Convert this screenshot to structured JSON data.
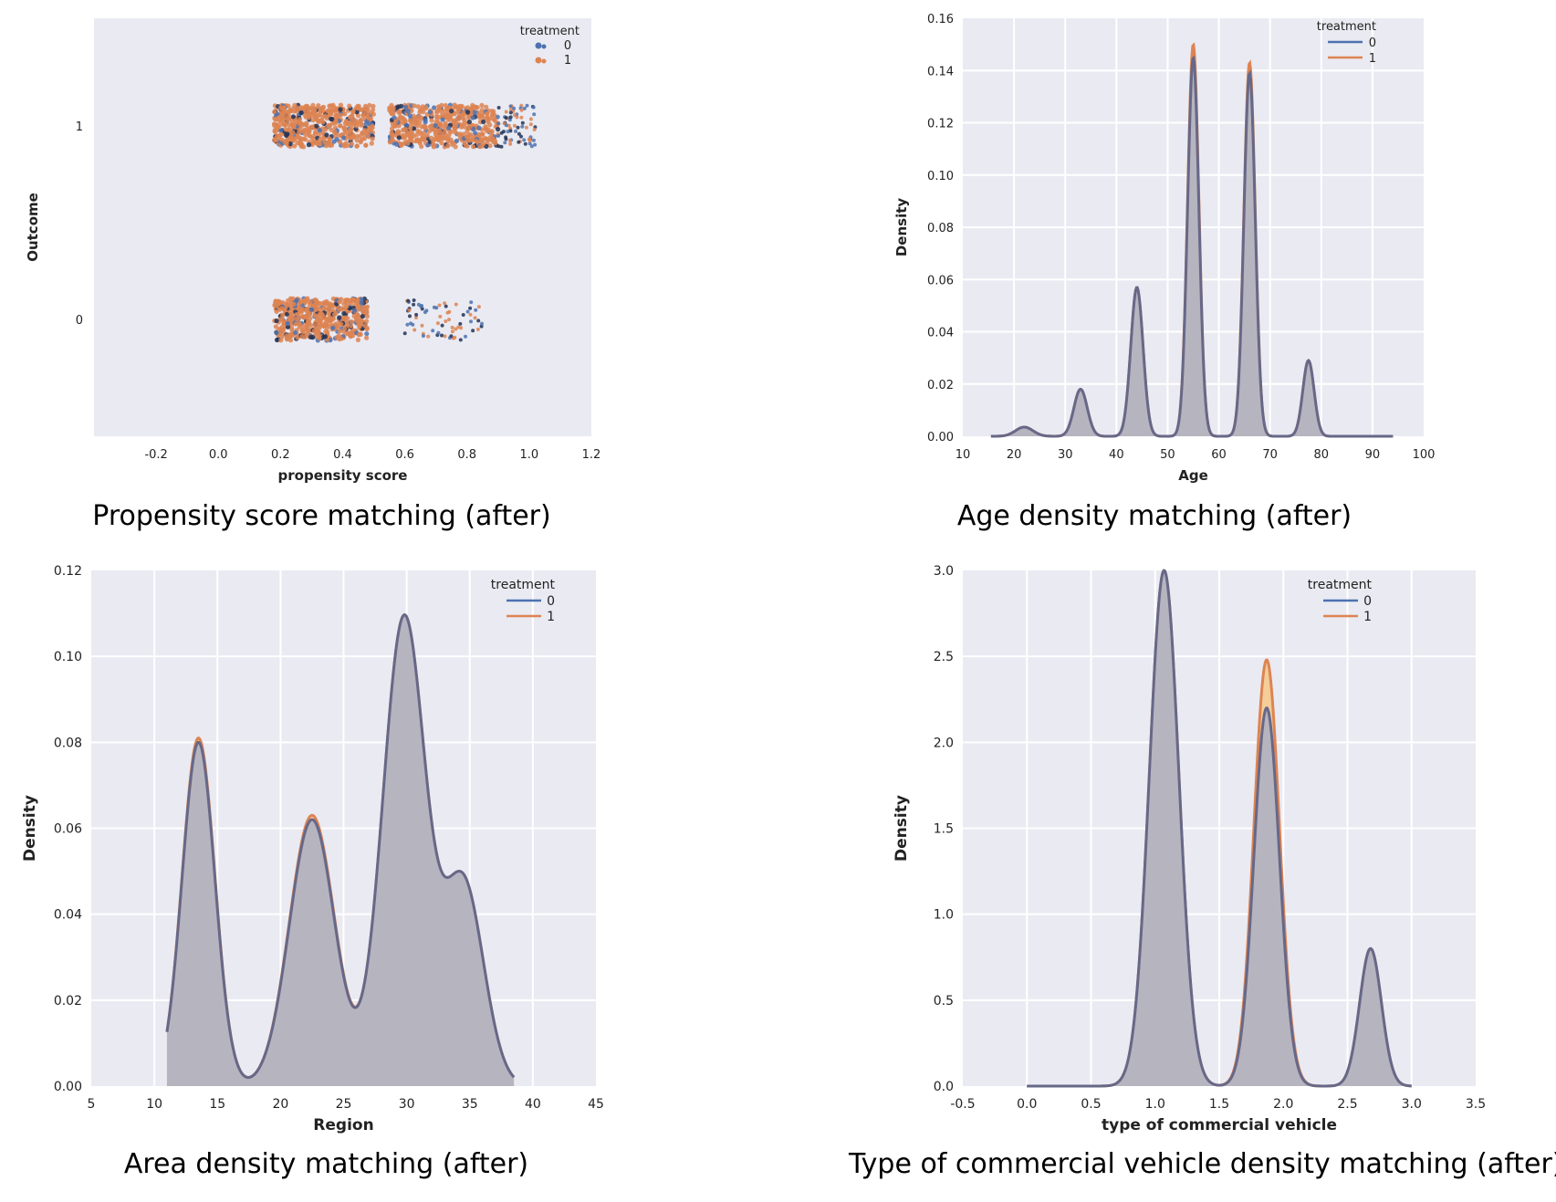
{
  "chart_data": [
    {
      "type": "scatter",
      "id": "propensity",
      "caption": "Propensity score matching (after)",
      "xlabel": "propensity score",
      "ylabel": "Outcome",
      "xlim": [
        -0.4,
        1.2
      ],
      "x_ticks": [
        -0.2,
        0.0,
        0.2,
        0.4,
        0.6,
        0.8,
        1.0,
        1.2
      ],
      "x_tick_labels": [
        "-0.2",
        "0.0",
        "0.2",
        "0.4",
        "0.6",
        "0.8",
        "1.0",
        "1.2"
      ],
      "y_categories": [
        "0",
        "1"
      ],
      "legend_title": "treatment",
      "legend_position": "top-right",
      "grid": false,
      "series": [
        {
          "name": "0",
          "color": "#4c72b0"
        },
        {
          "name": "1",
          "color": "#dd8452"
        }
      ],
      "clusters": [
        {
          "outcome": "1",
          "x_range": [
            0.18,
            0.5
          ],
          "density": "dense"
        },
        {
          "outcome": "1",
          "x_range": [
            0.55,
            0.9
          ],
          "density": "dense"
        },
        {
          "outcome": "1",
          "x_range": [
            0.9,
            1.02
          ],
          "density": "sparse"
        },
        {
          "outcome": "0",
          "x_range": [
            0.18,
            0.48
          ],
          "density": "dense"
        },
        {
          "outcome": "0",
          "x_range": [
            0.6,
            0.85
          ],
          "density": "sparse"
        }
      ]
    },
    {
      "type": "area",
      "id": "age",
      "caption": "Age density matching (after)",
      "xlabel": "Age",
      "ylabel": "Density",
      "xlim": [
        10,
        100
      ],
      "ylim": [
        0,
        0.16
      ],
      "x_ticks": [
        10,
        20,
        30,
        40,
        50,
        60,
        70,
        80,
        90,
        100
      ],
      "x_tick_labels": [
        "10",
        "20",
        "30",
        "40",
        "50",
        "60",
        "70",
        "80",
        "90",
        "100"
      ],
      "y_ticks": [
        0,
        0.02,
        0.04,
        0.06,
        0.08,
        0.1,
        0.12,
        0.14,
        0.16
      ],
      "y_tick_labels": [
        "0.00",
        "0.02",
        "0.04",
        "0.06",
        "0.08",
        "0.10",
        "0.12",
        "0.14",
        "0.16"
      ],
      "domain": [
        15.5,
        94
      ],
      "legend_title": "treatment",
      "legend_position": "top-right",
      "grid": true,
      "series": [
        {
          "name": "0",
          "color": "#4c72b0",
          "peaks": [
            [
              22,
              0.0035,
              1.7
            ],
            [
              33,
              0.018,
              1.3
            ],
            [
              44,
              0.057,
              1.2
            ],
            [
              55,
              0.145,
              1.1
            ],
            [
              66,
              0.139,
              1.1
            ],
            [
              77.5,
              0.029,
              1.1
            ]
          ]
        },
        {
          "name": "1",
          "color": "#dd8452",
          "peaks": [
            [
              22,
              0.0035,
              1.7
            ],
            [
              33,
              0.018,
              1.3
            ],
            [
              44,
              0.057,
              1.2
            ],
            [
              55,
              0.15,
              1.1
            ],
            [
              66,
              0.143,
              1.1
            ],
            [
              77.5,
              0.029,
              1.1
            ]
          ]
        }
      ]
    },
    {
      "type": "area",
      "id": "region",
      "caption": "Area density matching (after)",
      "xlabel": "Region",
      "ylabel": "Density",
      "xlim": [
        5,
        45
      ],
      "ylim": [
        0,
        0.12
      ],
      "x_ticks": [
        5,
        10,
        15,
        20,
        25,
        30,
        35,
        40,
        45
      ],
      "x_tick_labels": [
        "5",
        "10",
        "15",
        "20",
        "25",
        "30",
        "35",
        "40",
        "45"
      ],
      "y_ticks": [
        0,
        0.02,
        0.04,
        0.06,
        0.08,
        0.1,
        0.12
      ],
      "y_tick_labels": [
        "0.00",
        "0.02",
        "0.04",
        "0.06",
        "0.08",
        "0.10",
        "0.12"
      ],
      "domain": [
        11,
        38.5
      ],
      "legend_title": "treatment",
      "legend_position": "top-right",
      "grid": true,
      "series": [
        {
          "name": "0",
          "color": "#4c72b0",
          "peaks": [
            [
              13.5,
              0.08,
              1.3
            ],
            [
              22.5,
              0.062,
              1.8
            ],
            [
              29.8,
              0.109,
              1.7
            ],
            [
              34.5,
              0.047,
              1.6
            ]
          ]
        },
        {
          "name": "1",
          "color": "#dd8452",
          "peaks": [
            [
              13.5,
              0.081,
              1.3
            ],
            [
              22.5,
              0.063,
              1.8
            ],
            [
              29.8,
              0.109,
              1.7
            ],
            [
              34.5,
              0.047,
              1.6
            ]
          ]
        }
      ]
    },
    {
      "type": "area",
      "id": "vehicle",
      "caption": "Type of commercial vehicle density matching (after)",
      "xlabel": "type of commercial vehicle",
      "ylabel": "Density",
      "xlim": [
        -0.5,
        3.5
      ],
      "ylim": [
        0,
        3.0
      ],
      "x_ticks": [
        -0.5,
        0,
        0.5,
        1,
        1.5,
        2,
        2.5,
        3,
        3.5
      ],
      "x_tick_labels": [
        "-0.5",
        "0.0",
        "0.5",
        "1.0",
        "1.5",
        "2.0",
        "2.5",
        "3.0",
        "3.5"
      ],
      "y_ticks": [
        0,
        0.5,
        1.0,
        1.5,
        2.0,
        2.5,
        3.0
      ],
      "y_tick_labels": [
        "0.0",
        "0.5",
        "1.0",
        "1.5",
        "2.0",
        "2.5",
        "3.0"
      ],
      "domain": [
        0,
        3.0
      ],
      "legend_title": "treatment",
      "legend_position": "top-right",
      "grid": true,
      "series": [
        {
          "name": "0",
          "color": "#4c72b0",
          "peaks": [
            [
              1.07,
              3.0,
              0.115
            ],
            [
              1.87,
              2.2,
              0.1
            ],
            [
              2.68,
              0.8,
              0.085
            ]
          ]
        },
        {
          "name": "1",
          "color": "#dd8452",
          "peaks": [
            [
              1.07,
              3.0,
              0.115
            ],
            [
              1.87,
              2.48,
              0.1
            ],
            [
              2.68,
              0.8,
              0.085
            ]
          ]
        }
      ]
    }
  ]
}
